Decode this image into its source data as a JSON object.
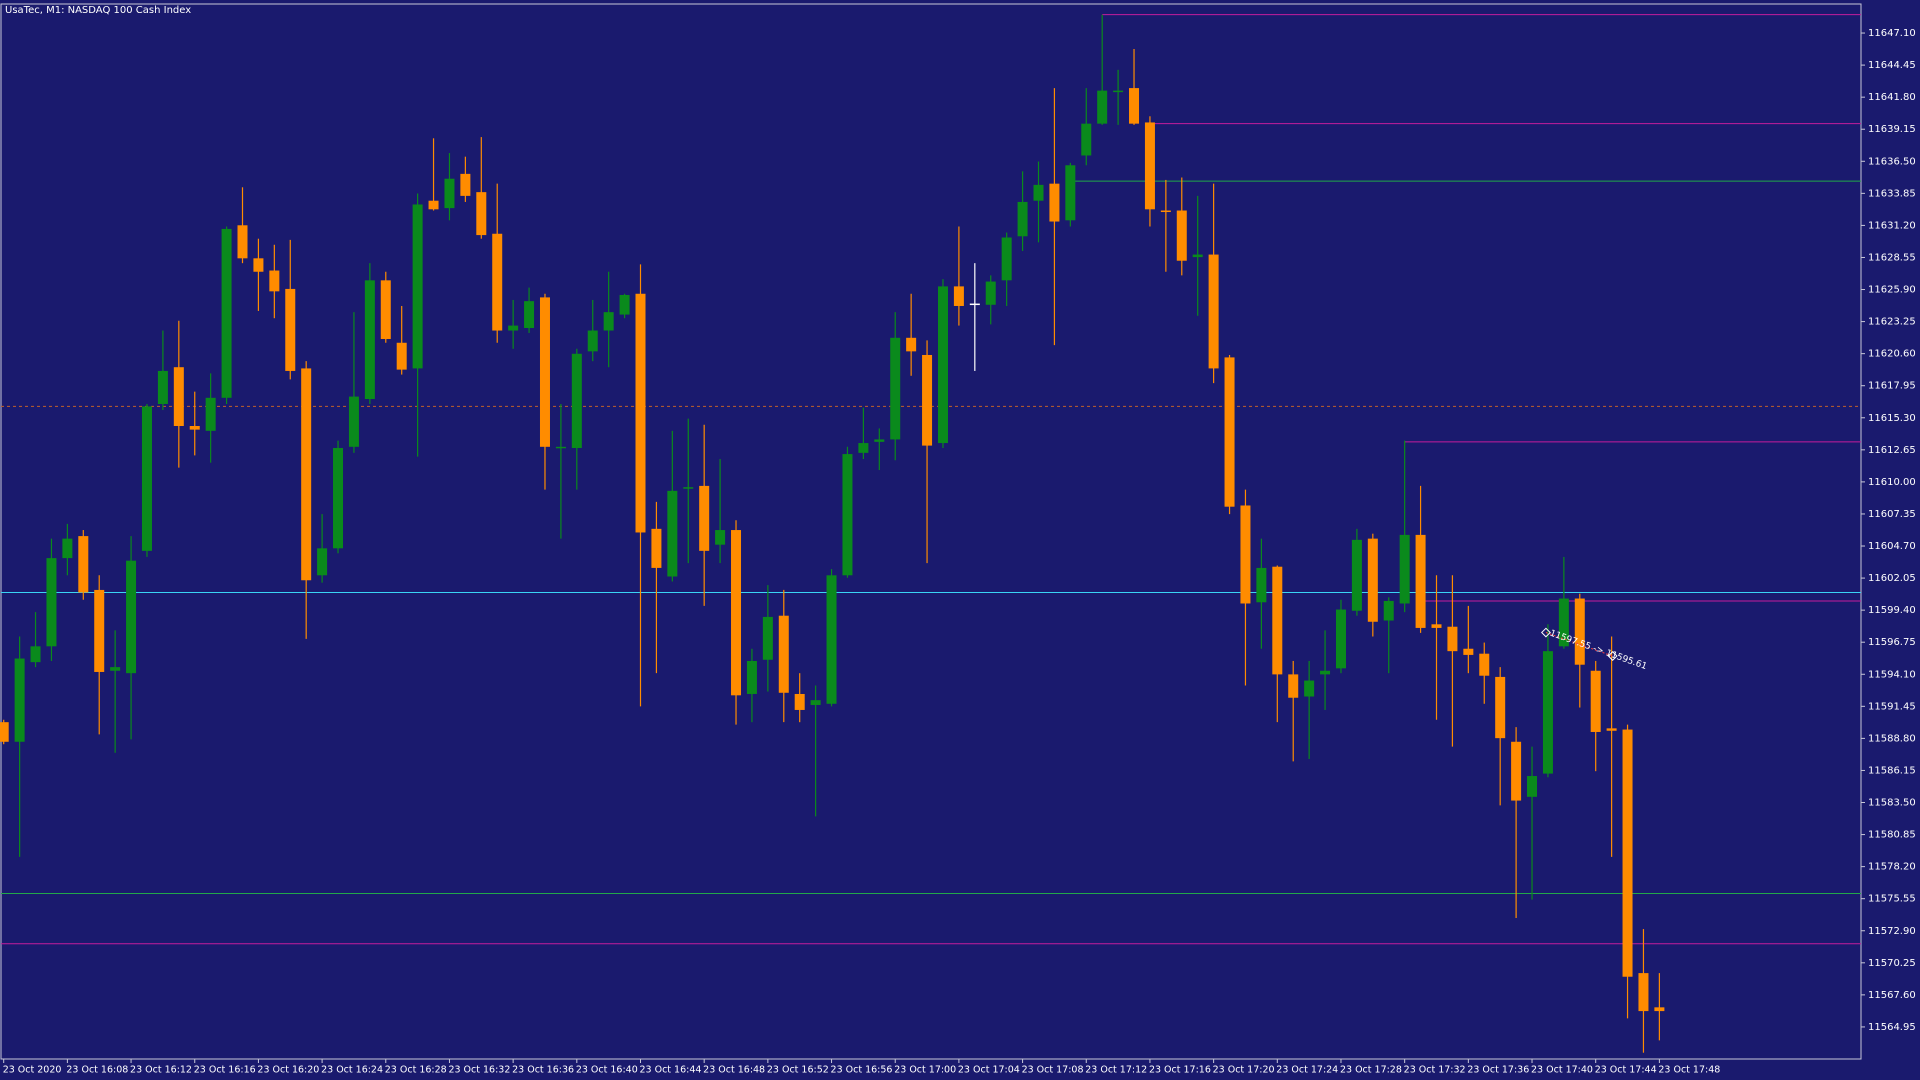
{
  "chart_data": {
    "type": "candlestick",
    "title": "UsaTec, M1:  NASDAQ 100 Cash Index",
    "categories": [
      "23 Oct 2020",
      null,
      null,
      null,
      "23 Oct 16:08",
      null,
      null,
      null,
      "23 Oct 16:12",
      null,
      null,
      null,
      "23 Oct 16:16",
      null,
      null,
      null,
      "23 Oct 16:20",
      null,
      null,
      null,
      "23 Oct 16:24",
      null,
      null,
      null,
      "23 Oct 16:28",
      null,
      null,
      null,
      "23 Oct 16:32",
      null,
      null,
      null,
      "23 Oct 16:36",
      null,
      null,
      null,
      "23 Oct 16:40",
      null,
      null,
      null,
      "23 Oct 16:44",
      null,
      null,
      null,
      "23 Oct 16:48",
      null,
      null,
      null,
      "23 Oct 16:52",
      null,
      null,
      null,
      "23 Oct 16:56",
      null,
      null,
      null,
      "23 Oct 17:00",
      null,
      null,
      null,
      "23 Oct 17:04",
      null,
      null,
      null,
      "23 Oct 17:08",
      null,
      null,
      null,
      "23 Oct 17:12",
      null,
      null,
      null,
      "23 Oct 17:16",
      null,
      null,
      null,
      "23 Oct 17:20",
      null,
      null,
      null,
      "23 Oct 17:24",
      null,
      null,
      null,
      "23 Oct 17:28",
      null,
      null,
      null,
      "23 Oct 17:32",
      null,
      null,
      null,
      "23 Oct 17:36",
      null,
      null,
      null,
      "23 Oct 17:40",
      null,
      null,
      null,
      "23 Oct 17:44",
      null,
      null,
      null,
      "23 Oct 17:48"
    ],
    "open": [
      11590.14,
      11588.52,
      11595.1,
      11596.41,
      11603.7,
      11605.52,
      11601.07,
      11594.39,
      11594.19,
      11604.3,
      11616.44,
      11619.48,
      11614.62,
      11614.22,
      11616.95,
      11631.21,
      11628.48,
      11627.47,
      11625.95,
      11619.38,
      11602.28,
      11604.51,
      11612.9,
      11616.85,
      11626.66,
      11621.5,
      11619.38,
      11633.24,
      11632.63,
      11635.46,
      11633.95,
      11630.51,
      11622.51,
      11622.72,
      11625.25,
      11612.8,
      11612.8,
      11620.79,
      11622.51,
      11623.83,
      11625.55,
      11606.12,
      11602.18,
      11609.46,
      11609.67,
      11604.81,
      11606.02,
      11592.47,
      11595.3,
      11598.94,
      11592.47,
      11591.56,
      11591.66,
      11602.28,
      11612.4,
      11613.31,
      11613.51,
      11621.91,
      11620.49,
      11613.21,
      11626.16,
      11624.74,
      11624.64,
      11626.66,
      11630.3,
      11633.24,
      11634.65,
      11631.62,
      11636.98,
      11639.61,
      11642.24,
      11642.55,
      11639.71,
      11632.43,
      11632.43,
      11628.58,
      11628.79,
      11620.29,
      11608.05,
      11600.05,
      11602.99,
      11594.09,
      11592.26,
      11594.09,
      11594.59,
      11599.35,
      11605.31,
      11598.54,
      11599.95,
      11605.62,
      11598.23,
      11598.03,
      11596.21,
      11595.8,
      11593.88,
      11588.52,
      11583.97,
      11585.89,
      11596.41,
      11600.36,
      11594.39,
      11589.63,
      11589.53,
      11569.4,
      11566.57
    ],
    "high": [
      11590.34,
      11597.22,
      11599.24,
      11605.31,
      11606.53,
      11606.02,
      11602.28,
      11597.73,
      11605.52,
      11616.44,
      11622.51,
      11623.32,
      11617.46,
      11618.97,
      11631.11,
      11634.35,
      11630.1,
      11629.6,
      11630.0,
      11619.98,
      11607.34,
      11613.41,
      11624.03,
      11628.08,
      11627.37,
      11624.54,
      11633.84,
      11638.4,
      11637.18,
      11636.88,
      11638.5,
      11634.65,
      11625.04,
      11626.06,
      11625.55,
      11616.44,
      11621.0,
      11625.04,
      11627.37,
      11625.55,
      11627.98,
      11608.35,
      11614.22,
      11615.23,
      11614.72,
      11611.89,
      11606.83,
      11596.21,
      11601.47,
      11601.07,
      11594.19,
      11593.17,
      11602.79,
      11612.9,
      11616.14,
      11614.42,
      11624.03,
      11625.55,
      11621.7,
      11626.76,
      11631.11,
      11628.08,
      11627.07,
      11630.61,
      11635.67,
      11636.48,
      11642.55,
      11636.37,
      11642.55,
      11648.62,
      11644.06,
      11645.78,
      11640.22,
      11634.96,
      11635.16,
      11633.64,
      11634.65,
      11620.49,
      11609.36,
      11605.31,
      11603.09,
      11595.2,
      11595.2,
      11597.73,
      11600.26,
      11606.12,
      11605.72,
      11600.46,
      11613.41,
      11609.67,
      11602.28,
      11602.28,
      11599.75,
      11596.72,
      11594.69,
      11589.73,
      11588.12,
      11598.23,
      11603.8,
      11600.76,
      11595.2,
      11597.22,
      11589.94,
      11573.04,
      11569.4
    ],
    "low": [
      11588.32,
      11579.01,
      11594.69,
      11595.2,
      11602.28,
      11600.26,
      11589.13,
      11587.61,
      11588.72,
      11603.8,
      11615.94,
      11611.18,
      11612.19,
      11611.59,
      11616.44,
      11628.08,
      11624.13,
      11623.53,
      11618.47,
      11597.02,
      11601.67,
      11604.1,
      11612.4,
      11616.44,
      11621.5,
      11618.87,
      11612.09,
      11632.43,
      11631.62,
      11633.14,
      11630.1,
      11621.5,
      11621.0,
      11622.31,
      11609.36,
      11605.31,
      11609.36,
      11619.98,
      11619.48,
      11623.53,
      11591.45,
      11594.19,
      11601.77,
      11603.29,
      11599.75,
      11603.29,
      11589.94,
      11590.14,
      11592.67,
      11590.14,
      11590.14,
      11582.35,
      11591.45,
      11602.08,
      11611.89,
      11610.98,
      11611.79,
      11618.77,
      11603.29,
      11612.8,
      11622.92,
      11619.17,
      11623.02,
      11624.54,
      11629.09,
      11629.8,
      11621.3,
      11631.11,
      11636.17,
      11639.51,
      11639.51,
      11639.51,
      11631.11,
      11627.37,
      11627.07,
      11623.73,
      11618.16,
      11607.34,
      11593.17,
      11596.21,
      11590.14,
      11586.9,
      11587.1,
      11591.15,
      11594.19,
      11598.94,
      11597.22,
      11594.19,
      11599.24,
      11597.52,
      11590.34,
      11588.12,
      11594.19,
      11591.66,
      11583.26,
      11573.95,
      11575.47,
      11585.59,
      11596.21,
      11591.35,
      11586.09,
      11579.01,
      11565.66,
      11562.82,
      11563.84
    ],
    "close": [
      11588.52,
      11595.4,
      11596.41,
      11603.7,
      11605.31,
      11600.86,
      11594.29,
      11594.69,
      11603.49,
      11616.24,
      11619.17,
      11614.62,
      11614.32,
      11616.95,
      11630.91,
      11628.48,
      11627.37,
      11625.75,
      11619.17,
      11601.87,
      11604.51,
      11612.8,
      11617.05,
      11626.66,
      11621.81,
      11619.28,
      11632.93,
      11632.53,
      11635.06,
      11633.64,
      11630.4,
      11622.51,
      11622.92,
      11624.94,
      11612.9,
      11612.9,
      11620.59,
      11622.51,
      11624.03,
      11625.45,
      11605.82,
      11602.89,
      11609.26,
      11609.56,
      11604.3,
      11606.02,
      11592.36,
      11595.2,
      11598.84,
      11592.57,
      11591.15,
      11591.96,
      11602.28,
      11612.3,
      11613.21,
      11613.51,
      11621.91,
      11620.79,
      11613.0,
      11626.16,
      11624.54,
      11624.74,
      11626.56,
      11630.2,
      11633.14,
      11634.55,
      11631.52,
      11636.17,
      11639.61,
      11642.34,
      11642.34,
      11639.61,
      11632.53,
      11632.33,
      11628.28,
      11628.79,
      11619.38,
      11607.95,
      11599.95,
      11602.89,
      11594.09,
      11592.16,
      11593.58,
      11594.39,
      11599.45,
      11605.21,
      11598.44,
      11600.16,
      11605.62,
      11597.93,
      11597.93,
      11596.01,
      11595.7,
      11593.98,
      11588.82,
      11583.66,
      11585.69,
      11596.01,
      11600.36,
      11594.89,
      11589.33,
      11589.43,
      11569.1,
      11566.26,
      11566.26
    ],
    "up_color": "#0a8a1c",
    "down_color": "#ff8c00",
    "doji_color": "#ffffff",
    "ylim": [
      11562.3,
      11649.5
    ],
    "yticks": [
      {
        "value": 11647.1,
        "label": "11647.10"
      },
      11644.45,
      {
        "value": 11641.8,
        "label": "11641.80"
      },
      11639.15,
      {
        "value": 11636.5,
        "label": "11636.50"
      },
      11633.85,
      {
        "value": 11631.2,
        "label": "11631.20"
      },
      11628.55,
      {
        "value": 11625.9,
        "label": "11625.90"
      },
      11623.25,
      {
        "value": 11620.6,
        "label": "11620.60"
      },
      11617.95,
      {
        "value": 11615.3,
        "label": "11615.30"
      },
      11612.65,
      {
        "value": 11610.0,
        "label": "11610.00"
      },
      11607.35,
      {
        "value": 11604.7,
        "label": "11604.70"
      },
      11602.05,
      {
        "value": 11599.4,
        "label": "11599.40"
      },
      11596.75,
      {
        "value": 11594.1,
        "label": "11594.10"
      },
      11591.45,
      {
        "value": 11588.8,
        "label": "11588.80"
      },
      11586.15,
      {
        "value": 11583.5,
        "label": "11583.50"
      },
      11580.85,
      {
        "value": 11578.2,
        "label": "11578.20"
      },
      11575.55,
      {
        "value": 11572.9,
        "label": "11572.90"
      },
      11570.25,
      {
        "value": 11567.6,
        "label": "11567.60"
      },
      11564.95
    ],
    "hlines": [
      {
        "value": 11648.62,
        "color": "#c41c9c"
      },
      {
        "value": 11639.61,
        "color": "#c41c9c"
      },
      {
        "value": 11634.86,
        "color": "#22a84a"
      },
      {
        "value": 11613.31,
        "color": "#c41c9c"
      },
      {
        "value": 11616.24,
        "color": "#c0602a",
        "style": "dashed"
      },
      {
        "value": 11600.86,
        "color": "#3ad4f4"
      },
      {
        "value": 11600.16,
        "color": "#c41c9c"
      },
      {
        "value": 11575.98,
        "color": "#22a84a"
      },
      {
        "value": 11571.83,
        "color": "#c41c9c"
      }
    ],
    "trendline": {
      "label": "11597.55 -> 11595.61",
      "start": 11597.55,
      "end": 11595.61,
      "color": "#ff4040"
    }
  }
}
